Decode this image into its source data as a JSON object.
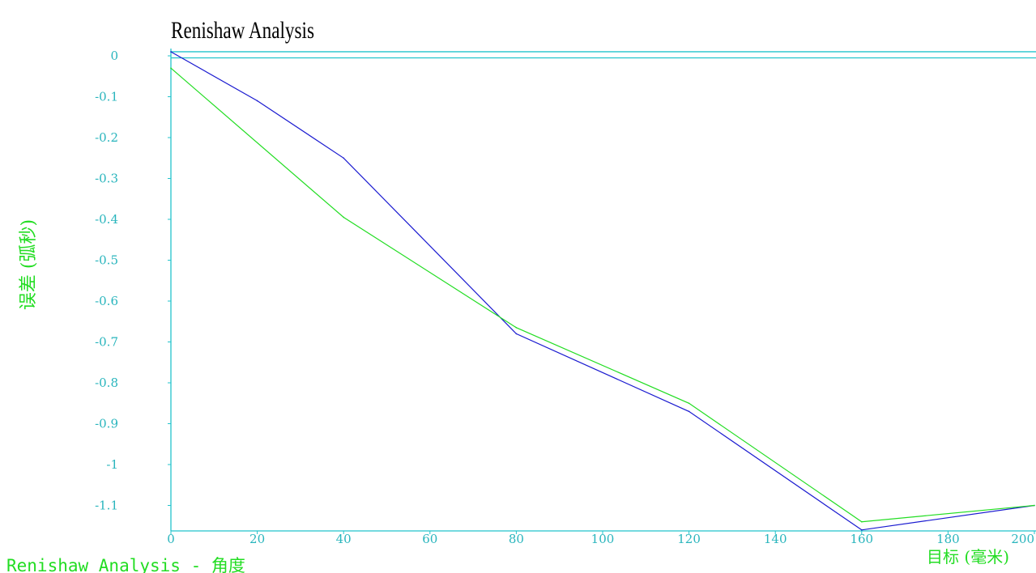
{
  "footer_text": "Renishaw Analysis - 角度",
  "colors": {
    "axis": "#22c4cc",
    "tick_text": "#29b5bd",
    "label": "#22dd22",
    "series_a": "#1a1ad0",
    "series_b": "#22dd22"
  },
  "chart_data": {
    "type": "line",
    "title": "Renishaw Analysis",
    "xlabel": "目标 (毫米)",
    "ylabel": "误差 (弧秒)",
    "xlim": [
      0,
      200
    ],
    "ylim": [
      -1.16,
      0.02
    ],
    "x_ticks": [
      "0",
      "20",
      "40",
      "60",
      "80",
      "100",
      "120",
      "140",
      "160",
      "180",
      "200"
    ],
    "y_ticks": [
      "0",
      "-0.1",
      "-0.2",
      "-0.3",
      "-0.4",
      "-0.5",
      "-0.6",
      "-0.7",
      "-0.8",
      "-0.9",
      "-1",
      "-1.1"
    ],
    "reference_lines": [
      0.01,
      -0.005
    ],
    "grid": false,
    "series": [
      {
        "color": "#1a1ad0",
        "x": [
          0,
          20,
          40,
          80,
          120,
          160,
          200
        ],
        "y": [
          0.01,
          -0.11,
          -0.25,
          -0.68,
          -0.87,
          -1.16,
          -1.1
        ]
      },
      {
        "color": "#22dd22",
        "x": [
          0,
          40,
          80,
          120,
          160,
          200
        ],
        "y": [
          -0.03,
          -0.395,
          -0.665,
          -0.85,
          -1.14,
          -1.1
        ]
      }
    ]
  }
}
